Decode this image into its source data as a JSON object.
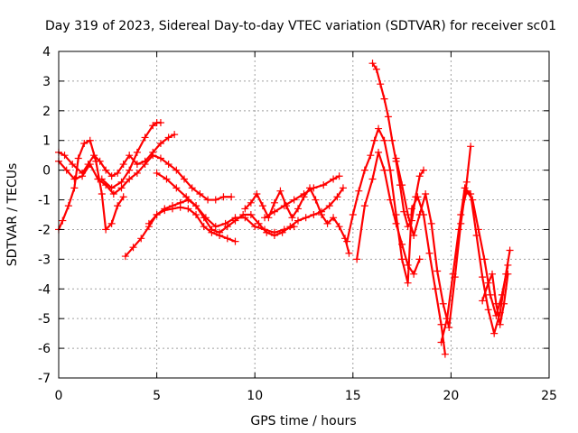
{
  "chart_data": {
    "type": "scatter",
    "title": "Day 319 of 2023, Sidereal Day-to-day VTEC variation (SDTVAR) for receiver sc01",
    "xlabel": "GPS time / hours",
    "ylabel": "SDTVAR / TECUs",
    "xlim": [
      0,
      25
    ],
    "ylim": [
      -7,
      4
    ],
    "xticks": [
      0,
      5,
      10,
      15,
      20,
      25
    ],
    "yticks": [
      -7,
      -6,
      -5,
      -4,
      -3,
      -2,
      -1,
      0,
      1,
      2,
      3,
      4
    ],
    "grid": true,
    "marker": "plus",
    "color": "#ff0000",
    "series": [
      {
        "x": [
          0,
          0.3,
          0.7,
          1.2,
          1.5,
          1.8,
          2.1,
          2.4,
          2.7,
          3.0,
          3.3,
          3.6,
          4.0,
          4.4,
          4.8,
          5.2,
          5.6,
          5.9
        ],
        "y": [
          0.6,
          0.5,
          0.2,
          -0.1,
          0.2,
          0.5,
          0.3,
          0.0,
          -0.2,
          -0.1,
          0.2,
          0.5,
          0.2,
          0.3,
          0.6,
          0.9,
          1.1,
          1.2
        ]
      },
      {
        "x": [
          0,
          0.2,
          0.5,
          0.8,
          1.0,
          1.3,
          1.6,
          1.9,
          2.2,
          2.4,
          2.7,
          3.0,
          3.3
        ],
        "y": [
          -2.0,
          -1.7,
          -1.2,
          -0.6,
          0.4,
          0.9,
          1.0,
          0.3,
          -0.8,
          -2.0,
          -1.8,
          -1.2,
          -0.9
        ]
      },
      {
        "x": [
          0,
          0.4,
          0.8,
          1.2,
          1.6,
          2.0,
          2.4,
          2.8,
          3.2,
          3.6,
          4.0,
          4.4,
          4.8,
          5.2,
          5.6,
          6.0,
          6.4,
          6.8,
          7.2,
          7.6,
          8.0,
          8.4,
          8.8
        ],
        "y": [
          0.3,
          0.0,
          -0.3,
          -0.2,
          0.2,
          -0.3,
          -0.5,
          -0.8,
          -0.6,
          -0.3,
          -0.1,
          0.2,
          0.5,
          0.4,
          0.2,
          0.0,
          -0.3,
          -0.6,
          -0.8,
          -1.0,
          -1.0,
          -0.9,
          -0.9
        ]
      },
      {
        "x": [
          2.2,
          2.7,
          3.2,
          3.6,
          4.0,
          4.4,
          4.8,
          5.0,
          5.2
        ],
        "y": [
          -0.3,
          -0.6,
          -0.4,
          0.0,
          0.6,
          1.1,
          1.5,
          1.6,
          1.6
        ]
      },
      {
        "x": [
          3.4,
          3.8,
          4.2,
          4.6,
          5.0,
          5.4,
          5.8,
          6.2,
          6.6,
          7.0,
          7.4,
          7.8,
          8.2,
          8.6,
          9.0
        ],
        "y": [
          -2.9,
          -2.6,
          -2.3,
          -1.9,
          -1.5,
          -1.35,
          -1.3,
          -1.25,
          -1.3,
          -1.5,
          -1.9,
          -2.1,
          -2.2,
          -2.3,
          -2.4
        ]
      },
      {
        "x": [
          5.0,
          5.5,
          6.0,
          6.5,
          7.0,
          7.5,
          8.0,
          8.5,
          9.0,
          9.5,
          10.0,
          10.5,
          11.0,
          11.5,
          12.0
        ],
        "y": [
          -0.1,
          -0.3,
          -0.6,
          -0.9,
          -1.2,
          -1.6,
          -1.9,
          -1.8,
          -1.6,
          -1.6,
          -1.9,
          -2.0,
          -2.1,
          -2.0,
          -1.9
        ]
      },
      {
        "x": [
          4.6,
          5.0,
          5.4,
          5.8,
          6.2,
          6.6,
          7.0,
          7.4,
          7.8,
          8.2,
          8.6,
          9.0,
          9.4,
          9.8,
          10.2,
          10.6,
          11.0,
          11.4,
          11.8,
          12.2,
          12.6,
          13.0,
          13.4,
          13.8,
          14.2,
          14.5
        ],
        "y": [
          -1.8,
          -1.5,
          -1.3,
          -1.2,
          -1.1,
          -1.0,
          -1.2,
          -1.6,
          -2.0,
          -2.1,
          -1.9,
          -1.7,
          -1.5,
          -1.5,
          -1.8,
          -2.1,
          -2.2,
          -2.1,
          -1.9,
          -1.7,
          -1.6,
          -1.5,
          -1.4,
          -1.2,
          -0.9,
          -0.6
        ]
      },
      {
        "x": [
          9.5,
          9.8,
          10.1,
          10.4,
          10.7,
          11.0,
          11.3,
          11.6,
          11.9,
          12.2,
          12.5,
          12.8,
          13.1,
          13.4,
          13.7,
          14.0,
          14.3,
          14.6,
          14.8
        ],
        "y": [
          -1.3,
          -1.1,
          -0.8,
          -1.2,
          -1.6,
          -1.1,
          -0.7,
          -1.2,
          -1.6,
          -1.3,
          -0.9,
          -0.6,
          -1.0,
          -1.5,
          -1.8,
          -1.6,
          -1.9,
          -2.3,
          -2.8
        ]
      },
      {
        "x": [
          10.5,
          11.0,
          11.5,
          12.0,
          12.5,
          13.0,
          13.5,
          14.0,
          14.3
        ],
        "y": [
          -1.6,
          -1.4,
          -1.2,
          -1.0,
          -0.8,
          -0.6,
          -0.5,
          -0.3,
          -0.2
        ]
      },
      {
        "x": [
          14.7,
          15.0,
          15.3,
          15.6,
          15.9,
          16.1,
          16.3,
          16.6,
          16.9,
          17.2,
          17.5,
          17.8,
          18.0,
          18.3,
          18.6,
          18.9,
          19.2,
          19.5,
          19.7
        ],
        "y": [
          -2.4,
          -1.5,
          -0.7,
          0.0,
          0.5,
          1.0,
          1.4,
          1.0,
          0.0,
          -1.5,
          -3.0,
          -3.8,
          -1.3,
          -0.9,
          -1.5,
          -2.8,
          -4.0,
          -5.2,
          -6.2
        ]
      },
      {
        "x": [
          15.2,
          15.6,
          16.0,
          16.3,
          16.6,
          16.9,
          17.2,
          17.5,
          17.8,
          18.1,
          18.4
        ],
        "y": [
          -3.0,
          -1.2,
          -0.3,
          0.6,
          0.0,
          -1.0,
          -1.8,
          -2.5,
          -3.2,
          -3.5,
          -3.0
        ]
      },
      {
        "x": [
          16.0,
          16.2,
          16.4,
          16.6,
          16.8,
          17.0,
          17.2,
          17.4,
          17.6,
          17.8,
          18.0,
          18.2,
          18.4,
          18.6
        ],
        "y": [
          3.6,
          3.4,
          2.9,
          2.4,
          1.8,
          1.0,
          0.3,
          -0.5,
          -1.4,
          -1.9,
          -1.7,
          -0.9,
          -0.2,
          0.0
        ]
      },
      {
        "x": [
          17.2,
          17.5,
          17.8,
          18.1,
          18.4,
          18.7,
          19.0,
          19.3,
          19.6,
          19.9,
          20.2,
          20.5,
          20.8,
          21.0
        ],
        "y": [
          0.4,
          -0.5,
          -1.5,
          -2.2,
          -1.5,
          -0.8,
          -1.8,
          -3.4,
          -4.5,
          -5.3,
          -3.6,
          -1.8,
          -0.4,
          0.8
        ]
      },
      {
        "x": [
          19.5,
          19.8,
          20.1,
          20.4,
          20.7,
          21.0,
          21.3,
          21.6,
          21.9,
          22.2,
          22.5,
          22.8,
          23.0
        ],
        "y": [
          -5.8,
          -5.0,
          -3.5,
          -2.0,
          -0.6,
          -0.8,
          -2.2,
          -3.6,
          -4.7,
          -5.5,
          -4.8,
          -3.5,
          -2.7
        ]
      },
      {
        "x": [
          20.5,
          20.8,
          21.1,
          21.4,
          21.7,
          22.0,
          22.3,
          22.6,
          22.9
        ],
        "y": [
          -1.5,
          -0.7,
          -1.0,
          -2.0,
          -3.0,
          -4.2,
          -4.9,
          -4.2,
          -3.2
        ]
      },
      {
        "x": [
          21.6,
          21.9,
          22.1,
          22.3,
          22.5,
          22.7,
          22.9
        ],
        "y": [
          -4.4,
          -3.8,
          -3.5,
          -4.5,
          -5.2,
          -4.5,
          -3.5
        ]
      }
    ]
  }
}
